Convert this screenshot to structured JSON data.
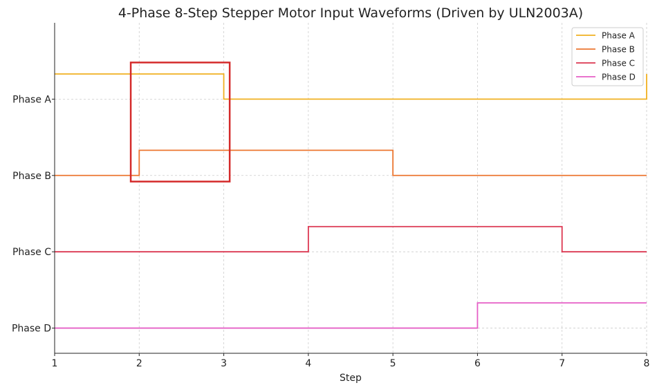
{
  "chart_data": {
    "type": "line",
    "step": "post",
    "title": "4-Phase 8-Step Stepper Motor Input Waveforms (Driven by ULN2003A)",
    "xlabel": "Step",
    "ylabel": "",
    "xlim": [
      1,
      8
    ],
    "ylim": [
      -0.33,
      4.0
    ],
    "x": [
      1,
      2,
      3,
      4,
      5,
      6,
      7,
      8
    ],
    "x_ticks": [
      "1",
      "2",
      "3",
      "4",
      "5",
      "6",
      "7",
      "8"
    ],
    "y_ticks": [
      {
        "label": "Phase A",
        "value": 3
      },
      {
        "label": "Phase B",
        "value": 2
      },
      {
        "label": "Phase C",
        "value": 1
      },
      {
        "label": "Phase D",
        "value": 0
      }
    ],
    "signal_height": 0.33,
    "grid": true,
    "legend_position": "top-right",
    "series": [
      {
        "name": "Phase A",
        "offset": 3,
        "color": "#f0b020",
        "values": [
          1,
          1,
          0,
          0,
          0,
          0,
          0,
          1
        ]
      },
      {
        "name": "Phase B",
        "offset": 2,
        "color": "#ec7630",
        "values": [
          0,
          1,
          1,
          1,
          0,
          0,
          0,
          0
        ]
      },
      {
        "name": "Phase C",
        "offset": 1,
        "color": "#dc3650",
        "values": [
          0,
          0,
          0,
          1,
          1,
          1,
          0,
          0
        ]
      },
      {
        "name": "Phase D",
        "offset": 0,
        "color": "#e55fc6",
        "values": [
          0,
          0,
          0,
          0,
          0,
          1,
          1,
          1
        ]
      }
    ],
    "highlight": {
      "x": [
        1.9,
        3.07
      ],
      "y": [
        1.92,
        3.48
      ],
      "color": "#d42a2a"
    }
  }
}
